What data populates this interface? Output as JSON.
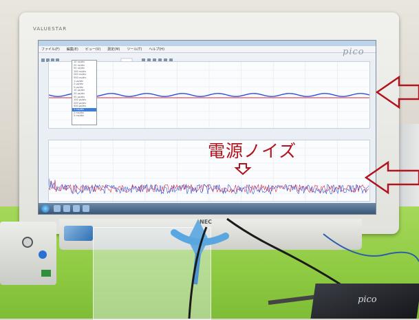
{
  "monitor": {
    "brand": "VALUESTAR",
    "maker": "NEC"
  },
  "screen": {
    "menu": [
      "ファイル(F)",
      "編集(E)",
      "ビュー(V)",
      "測定(M)",
      "ツール(T)",
      "ヘルプ(H)"
    ],
    "software_logo": "pico",
    "timebase_options": [
      "10 ns/div",
      "20 ns/div",
      "50 ns/div",
      "100 ns/div",
      "200 ns/div",
      "500 ns/div",
      "1 µs/div",
      "2 µs/div",
      "5 µs/div",
      "10 µs/div",
      "20 µs/div",
      "50 µs/div",
      "100 µs/div",
      "200 µs/div",
      "500 µs/div",
      "1 ms/div",
      "2 ms/div",
      "5 ms/div"
    ],
    "timebase_selected_index": 15
  },
  "annotation": {
    "text": "電源ノイズ",
    "color": "#b0141e",
    "arrow_color": "#b0141e"
  },
  "device": {
    "label": "pico"
  },
  "colors": {
    "trace_blue": "#2a4fd6",
    "trace_red": "#d8243a",
    "desk_green": "#8fcb43"
  }
}
